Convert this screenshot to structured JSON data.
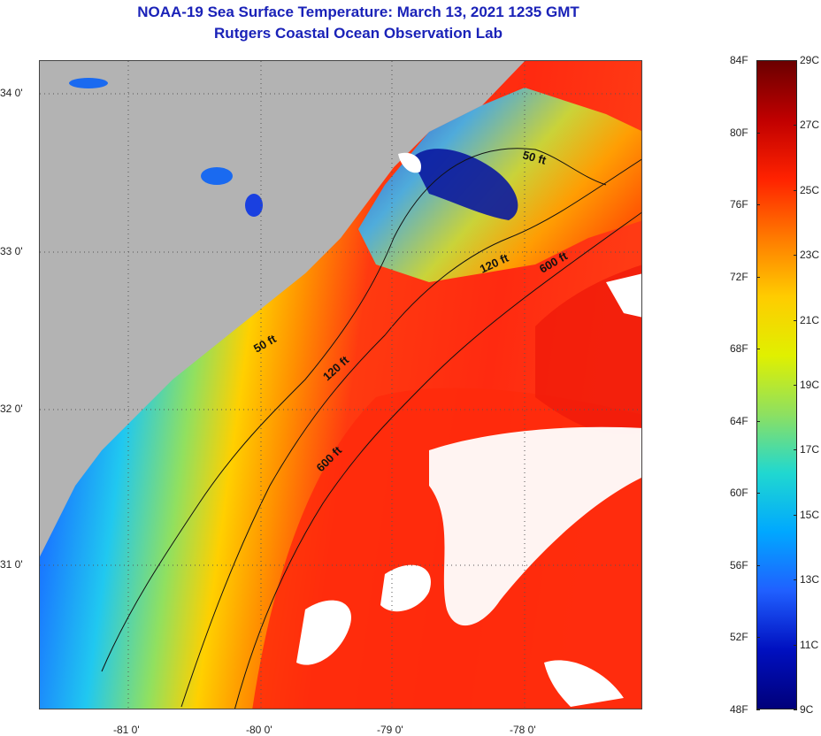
{
  "title_line1": "NOAA-19 Sea Surface Temperature:  March 13, 2021 1235 GMT",
  "title_line2": "Rutgers Coastal Ocean Observation Lab",
  "map": {
    "latitude_labels": [
      "34 0'",
      "33 0'",
      "32 0'",
      "31 0'"
    ],
    "longitude_labels": [
      "-81 0'",
      "-80 0'",
      "-79 0'",
      "-78 0'"
    ],
    "contour_labels": [
      {
        "text": "50 ft",
        "isobath": "50 ft"
      },
      {
        "text": "50 ft",
        "isobath": "50 ft"
      },
      {
        "text": "120 ft",
        "isobath": "120 ft"
      },
      {
        "text": "120 ft",
        "isobath": "120 ft"
      },
      {
        "text": "600 ft",
        "isobath": "600 ft"
      },
      {
        "text": "600 ft",
        "isobath": "600 ft"
      }
    ],
    "land_color": "#b3b3b3",
    "cloud_color": "#ffffff"
  },
  "colorbar": {
    "fahrenheit_labels": [
      "84F",
      "80F",
      "76F",
      "72F",
      "68F",
      "64F",
      "60F",
      "56F",
      "52F",
      "48F"
    ],
    "celsius_labels": [
      "29C",
      "27C",
      "25C",
      "23C",
      "21C",
      "19C",
      "17C",
      "15C",
      "13C",
      "11C",
      "9C"
    ],
    "colors": [
      "#6b0000",
      "#c00000",
      "#ff2200",
      "#ff7a00",
      "#ffcc00",
      "#e0f000",
      "#8ee060",
      "#20d8d0",
      "#00a8ff",
      "#2060ff",
      "#0010c0",
      "#00007a"
    ]
  }
}
